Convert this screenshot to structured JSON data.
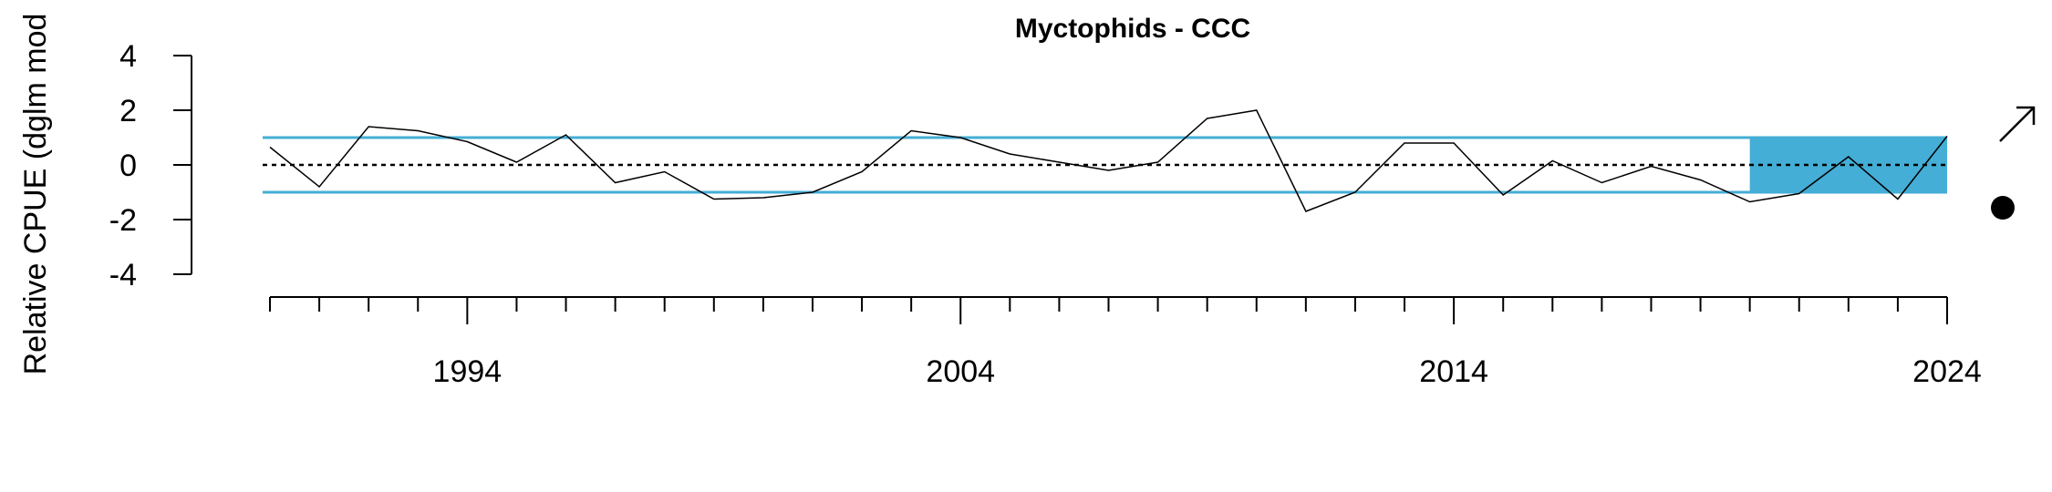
{
  "chart_data": {
    "type": "line",
    "title": "Myctophids - CCC",
    "ylabel": "Relative CPUE (dglm mod",
    "xlabel": "",
    "x": [
      1990,
      1991,
      1992,
      1993,
      1994,
      1995,
      1996,
      1997,
      1998,
      1999,
      2000,
      2001,
      2002,
      2003,
      2004,
      2005,
      2006,
      2007,
      2008,
      2009,
      2010,
      2011,
      2012,
      2013,
      2014,
      2015,
      2016,
      2017,
      2018,
      2019,
      2020,
      2021,
      2022,
      2023,
      2024
    ],
    "series": [
      {
        "values": [
          0.65,
          -0.8,
          1.4,
          1.25,
          0.85,
          0.1,
          1.1,
          -0.65,
          -0.25,
          -1.25,
          -1.2,
          -1.0,
          -0.25,
          1.25,
          1.0,
          0.4,
          0.1,
          -0.2,
          0.1,
          1.7,
          2.0,
          -1.7,
          -1.0,
          0.8,
          0.8,
          -1.1,
          0.15,
          -0.65,
          -0.05,
          -0.55,
          -1.35,
          -1.05,
          0.3,
          -1.25,
          1.05
        ],
        "color": "#000000"
      }
    ],
    "xlim": [
      1990,
      2024
    ],
    "ylim": [
      -4,
      4
    ],
    "yticks": [
      4,
      2,
      0,
      -2,
      -4
    ],
    "xtick_labels": [
      "1994",
      "2004",
      "2014",
      "2024"
    ],
    "xticks_labeled": [
      1994,
      2004,
      2014,
      2024
    ],
    "reference_lines": {
      "mean": 0,
      "upper_sd": 1,
      "lower_sd": -1,
      "color": "#44aed6"
    },
    "highlight_window": {
      "x_start": 2020,
      "x_end": 2024,
      "color": "#44aed6"
    },
    "trend_symbols": {
      "recent_trend": "arrow-up-right",
      "recent_mean": "filled-circle"
    },
    "grid": false
  }
}
